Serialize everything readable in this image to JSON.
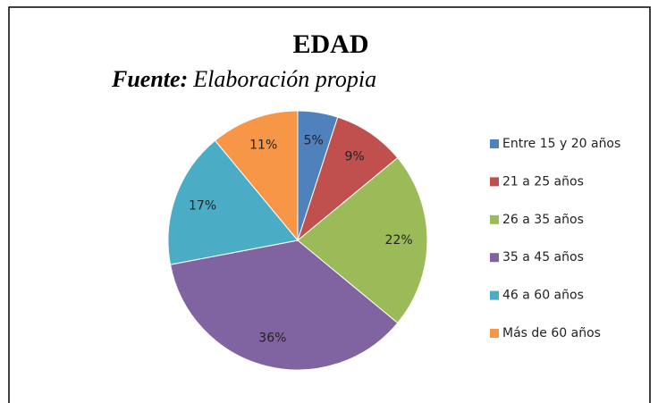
{
  "chart_data": {
    "type": "pie",
    "title": "EDAD",
    "source_label": "Fuente:",
    "source": "Elaboración propia",
    "categories": [
      "Entre 15 y 20 años",
      "21 a 25 años",
      "26 a 35 años",
      "35 a 45 años",
      "46 a 60 años",
      "Más de 60 años"
    ],
    "values": [
      5,
      9,
      22,
      36,
      17,
      11
    ],
    "value_labels": [
      "5%",
      "9%",
      "22%",
      "36%",
      "17%",
      "11%"
    ],
    "colors": [
      "#4f81bd",
      "#c0504d",
      "#9bbb59",
      "#8064a2",
      "#4bacc6",
      "#f79646"
    ],
    "legend": "right"
  }
}
